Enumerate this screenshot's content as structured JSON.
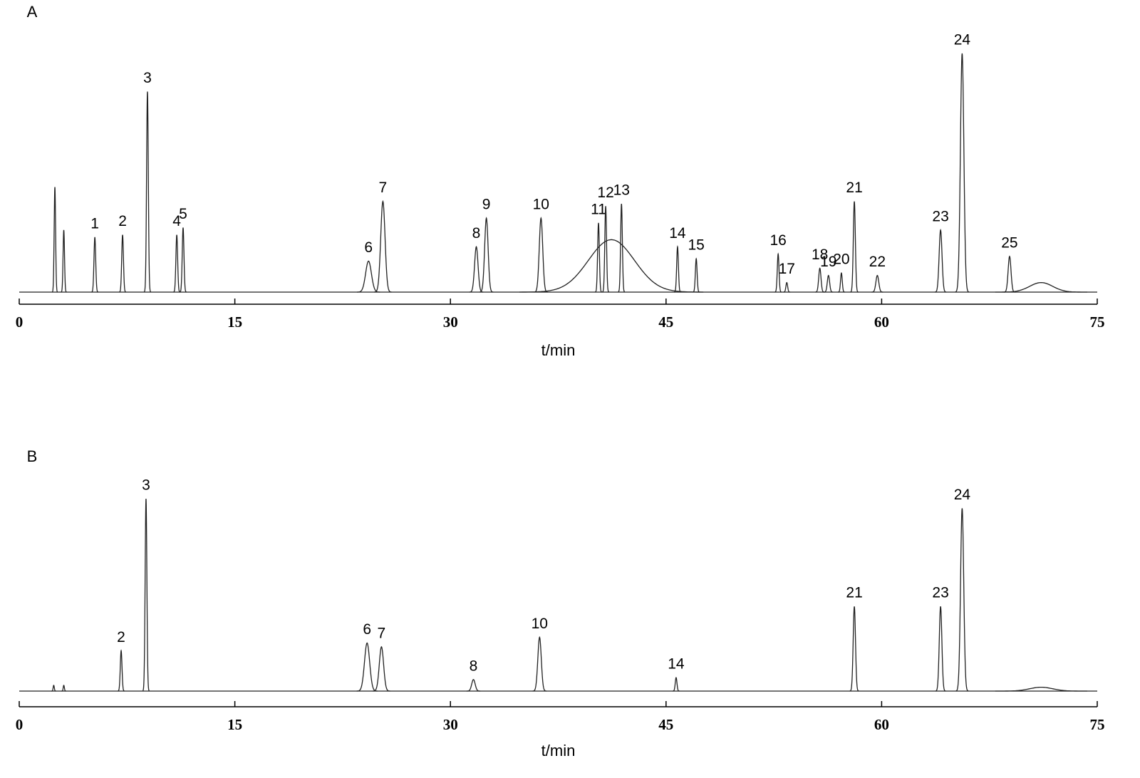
{
  "chart_data": [
    {
      "type": "chromatogram",
      "panel": "A",
      "xlabel": "t/min",
      "xlim": [
        0,
        75
      ],
      "xticks": [
        0,
        15,
        30,
        45,
        60,
        75
      ],
      "ylim": [
        0,
        100
      ],
      "color": "#222222",
      "x": [
        2.48,
        3.1,
        5.26,
        7.19,
        8.92,
        10.96,
        11.4,
        24.3,
        25.3,
        31.8,
        32.5,
        36.3,
        40.3,
        40.8,
        41.2,
        41.9,
        45.8,
        47.1,
        52.8,
        53.4,
        55.7,
        56.3,
        57.2,
        58.1,
        59.7,
        64.1,
        65.6,
        68.9,
        71.1
      ],
      "values": [
        44,
        26,
        23,
        24,
        84,
        24,
        27,
        13,
        38,
        19,
        31,
        31,
        29,
        36,
        22,
        37,
        19,
        14,
        16,
        4,
        10,
        7,
        8,
        38,
        7,
        26,
        100,
        15,
        4
      ],
      "widths": [
        0.05,
        0.05,
        0.06,
        0.06,
        0.06,
        0.06,
        0.06,
        0.2,
        0.15,
        0.12,
        0.12,
        0.12,
        0.06,
        0.06,
        1.6,
        0.06,
        0.06,
        0.06,
        0.06,
        0.06,
        0.08,
        0.08,
        0.06,
        0.07,
        0.1,
        0.1,
        0.12,
        0.1,
        0.8
      ],
      "peak_labels": [
        null,
        null,
        "1",
        "2",
        "3",
        "4",
        "5",
        "6",
        "7",
        "8",
        "9",
        "10",
        "11",
        "12",
        null,
        "13",
        "14",
        "15",
        "16",
        "17",
        "18",
        "19",
        "20",
        "21",
        "22",
        "23",
        "24",
        "25",
        null
      ]
    },
    {
      "type": "chromatogram",
      "panel": "B",
      "xlabel": "t/min",
      "xlim": [
        0,
        75
      ],
      "xticks": [
        0,
        15,
        30,
        45,
        60,
        75
      ],
      "ylim": [
        0,
        100
      ],
      "color": "#222222",
      "x": [
        2.4,
        3.1,
        7.09,
        8.82,
        24.2,
        25.2,
        31.6,
        36.2,
        45.7,
        58.1,
        64.1,
        65.6,
        71.1
      ],
      "values": [
        3,
        3,
        21,
        100,
        25,
        23,
        6,
        28,
        7,
        44,
        44,
        95,
        2
      ],
      "widths": [
        0.04,
        0.04,
        0.06,
        0.06,
        0.18,
        0.15,
        0.12,
        0.12,
        0.06,
        0.08,
        0.09,
        0.11,
        0.8
      ],
      "peak_labels": [
        null,
        null,
        "2",
        "3",
        "6",
        "7",
        "8",
        "10",
        "14",
        "21",
        "23",
        "24",
        null
      ]
    }
  ]
}
